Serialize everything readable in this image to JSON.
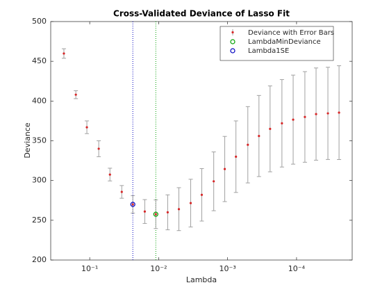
{
  "chart_data": {
    "type": "errorbar",
    "title": "Cross-Validated Deviance of Lasso Fit",
    "xlabel": "Lambda",
    "ylabel": "Deviance",
    "xscale": "log",
    "x_reversed": true,
    "xlim": [
      1.56e-05,
      0.368
    ],
    "xticks": [
      {
        "value": 0.1,
        "label": "10⁻¹"
      },
      {
        "value": 0.01,
        "label": "10⁻²"
      },
      {
        "value": 0.001,
        "label": "10⁻³"
      },
      {
        "value": 0.0001,
        "label": "10⁻⁴"
      }
    ],
    "ylim": [
      200,
      500
    ],
    "yticks": [
      200,
      250,
      300,
      350,
      400,
      450,
      500
    ],
    "legend_position": "upper right",
    "series": [
      {
        "name": "Deviance with Error Bars",
        "color": "#d62728",
        "error_color": "#a0a0a0",
        "x": [
          0.237,
          0.159,
          0.11,
          0.074,
          0.0509,
          0.0343,
          0.0237,
          0.0159,
          0.011,
          0.0074,
          0.00509,
          0.00343,
          0.00237,
          0.00159,
          0.0011,
          0.000757,
          0.000509,
          0.000351,
          0.000242,
          0.000163,
          0.000112,
          7.57e-05,
          5.21e-05,
          3.51e-05,
          2.42e-05
        ],
        "values": [
          459.8,
          408,
          367,
          340,
          307.5,
          285.7,
          270,
          261,
          257.6,
          260,
          264,
          271.6,
          282,
          299,
          314.5,
          330,
          345,
          356,
          365,
          372,
          376.6,
          380,
          383.6,
          384.5,
          385.4
        ],
        "errors": [
          6,
          5,
          8,
          10,
          8,
          8,
          11,
          15,
          18,
          22,
          27,
          30,
          33,
          37,
          41,
          45,
          48,
          51,
          54,
          55,
          56,
          57,
          58,
          58,
          59
        ]
      }
    ],
    "markers": [
      {
        "name": "LambdaMinDeviance",
        "color": "#00a000",
        "x": 0.011,
        "value": 257.6
      },
      {
        "name": "Lambda1SE",
        "color": "#0000c0",
        "x": 0.0237,
        "value": 270
      }
    ]
  }
}
